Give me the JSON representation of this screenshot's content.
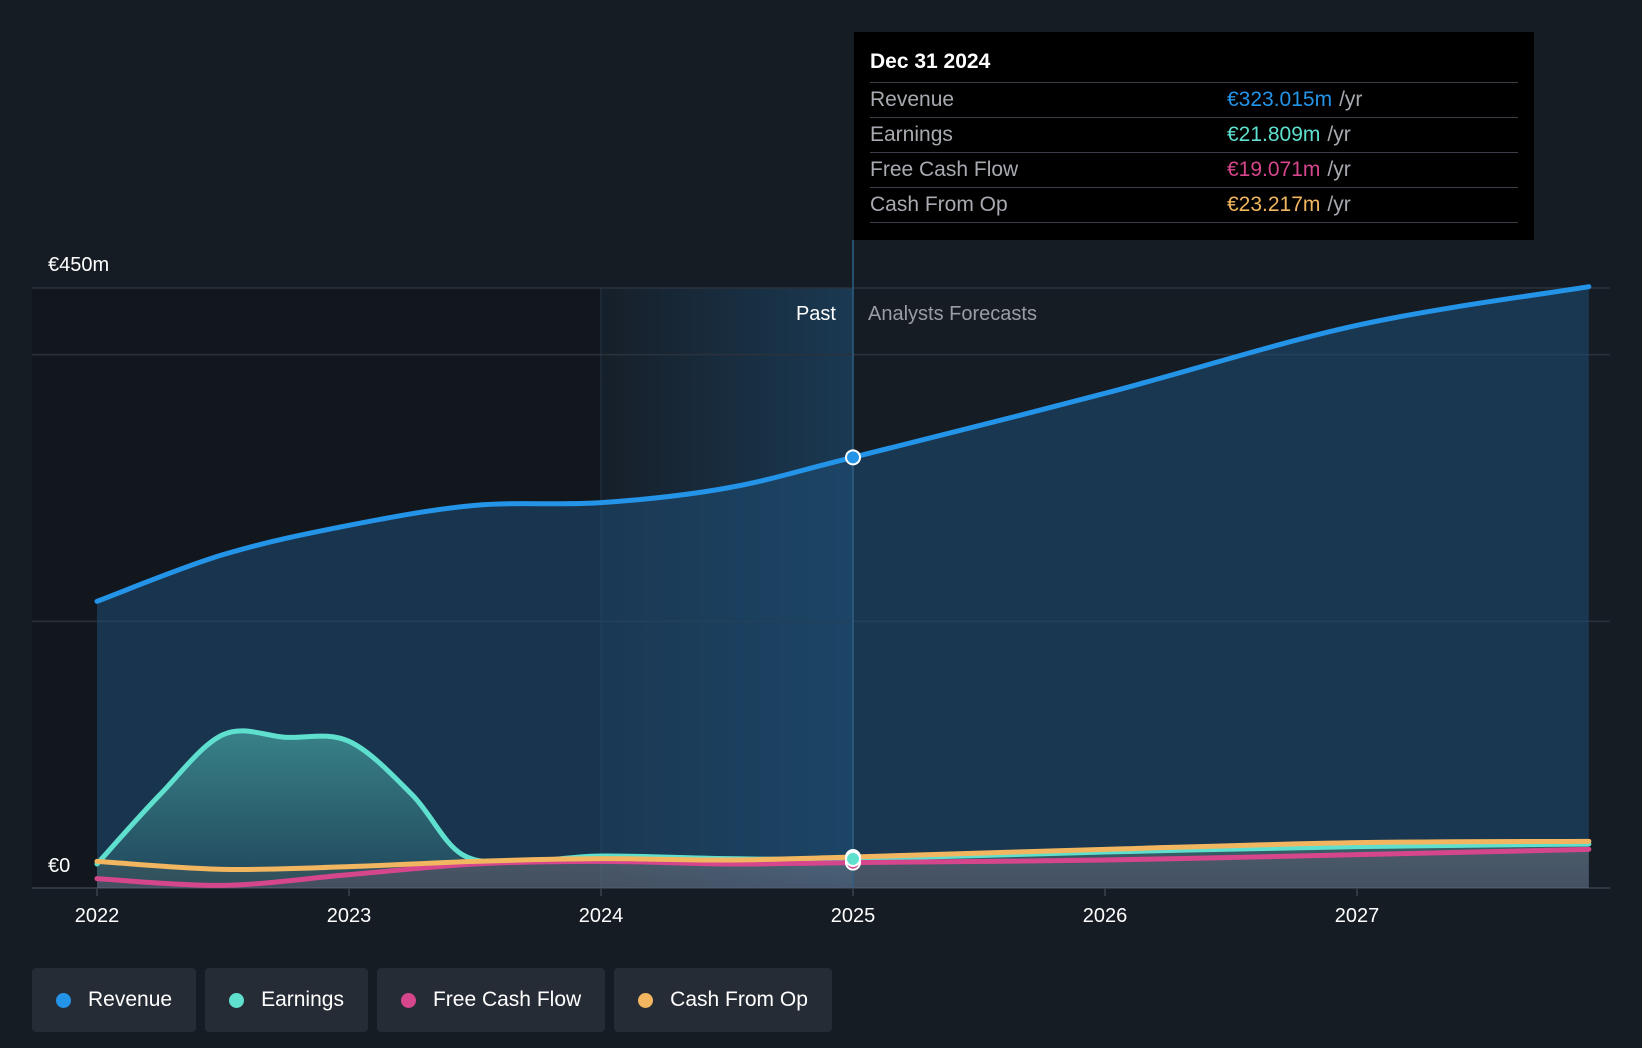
{
  "chart_data": {
    "type": "area",
    "y_top_label": "€450m",
    "y_zero_label": "€0",
    "ylim": [
      0,
      450
    ],
    "xlim": [
      2022,
      2027.92
    ],
    "x_ticks": [
      "2022",
      "2023",
      "2024",
      "2025",
      "2026",
      "2027"
    ],
    "past_label": "Past",
    "forecast_label": "Analysts Forecasts",
    "divider_x": 2025,
    "grid": true,
    "series": [
      {
        "name": "Revenue",
        "color": "#2394e8",
        "points": [
          [
            2022,
            215
          ],
          [
            2022.5,
            250
          ],
          [
            2023,
            272
          ],
          [
            2023.5,
            287
          ],
          [
            2024,
            289
          ],
          [
            2024.5,
            300
          ],
          [
            2025,
            323
          ],
          [
            2026,
            371
          ],
          [
            2027,
            422
          ],
          [
            2027.92,
            451
          ]
        ]
      },
      {
        "name": "Earnings",
        "color": "#5fe0cf",
        "points": [
          [
            2022,
            18
          ],
          [
            2022.25,
            70
          ],
          [
            2022.5,
            115
          ],
          [
            2022.75,
            113
          ],
          [
            2023,
            110
          ],
          [
            2023.25,
            70
          ],
          [
            2023.45,
            25
          ],
          [
            2023.7,
            20
          ],
          [
            2024,
            24
          ],
          [
            2024.5,
            22
          ],
          [
            2025,
            21.8
          ],
          [
            2026,
            27
          ],
          [
            2027,
            31
          ],
          [
            2027.92,
            33
          ]
        ]
      },
      {
        "name": "Free Cash Flow",
        "color": "#d6468c",
        "points": [
          [
            2022,
            7
          ],
          [
            2022.5,
            2
          ],
          [
            2023,
            10
          ],
          [
            2023.5,
            18
          ],
          [
            2024,
            20
          ],
          [
            2024.5,
            18
          ],
          [
            2025,
            19.071
          ],
          [
            2026,
            21
          ],
          [
            2027,
            25
          ],
          [
            2027.92,
            29
          ]
        ]
      },
      {
        "name": "Cash From Op",
        "color": "#f1b65f",
        "points": [
          [
            2022,
            20
          ],
          [
            2022.5,
            14
          ],
          [
            2023,
            16
          ],
          [
            2023.5,
            20
          ],
          [
            2024,
            22
          ],
          [
            2024.5,
            21
          ],
          [
            2025,
            23.217
          ],
          [
            2026,
            29
          ],
          [
            2027,
            34
          ],
          [
            2027.92,
            35
          ]
        ]
      }
    ]
  },
  "tooltip": {
    "date": "Dec 31 2024",
    "rows": [
      {
        "label": "Revenue",
        "value": "€323.015m",
        "unit": "/yr",
        "color": "#2394e8"
      },
      {
        "label": "Earnings",
        "value": "€21.809m",
        "unit": "/yr",
        "color": "#5fe0cf"
      },
      {
        "label": "Free Cash Flow",
        "value": "€19.071m",
        "unit": "/yr",
        "color": "#d6468c"
      },
      {
        "label": "Cash From Op",
        "value": "€23.217m",
        "unit": "/yr",
        "color": "#f1b65f"
      }
    ]
  },
  "legend": [
    {
      "label": "Revenue",
      "color": "#2394e8"
    },
    {
      "label": "Earnings",
      "color": "#5fe0cf"
    },
    {
      "label": "Free Cash Flow",
      "color": "#d6468c"
    },
    {
      "label": "Cash From Op",
      "color": "#f1b65f"
    }
  ]
}
